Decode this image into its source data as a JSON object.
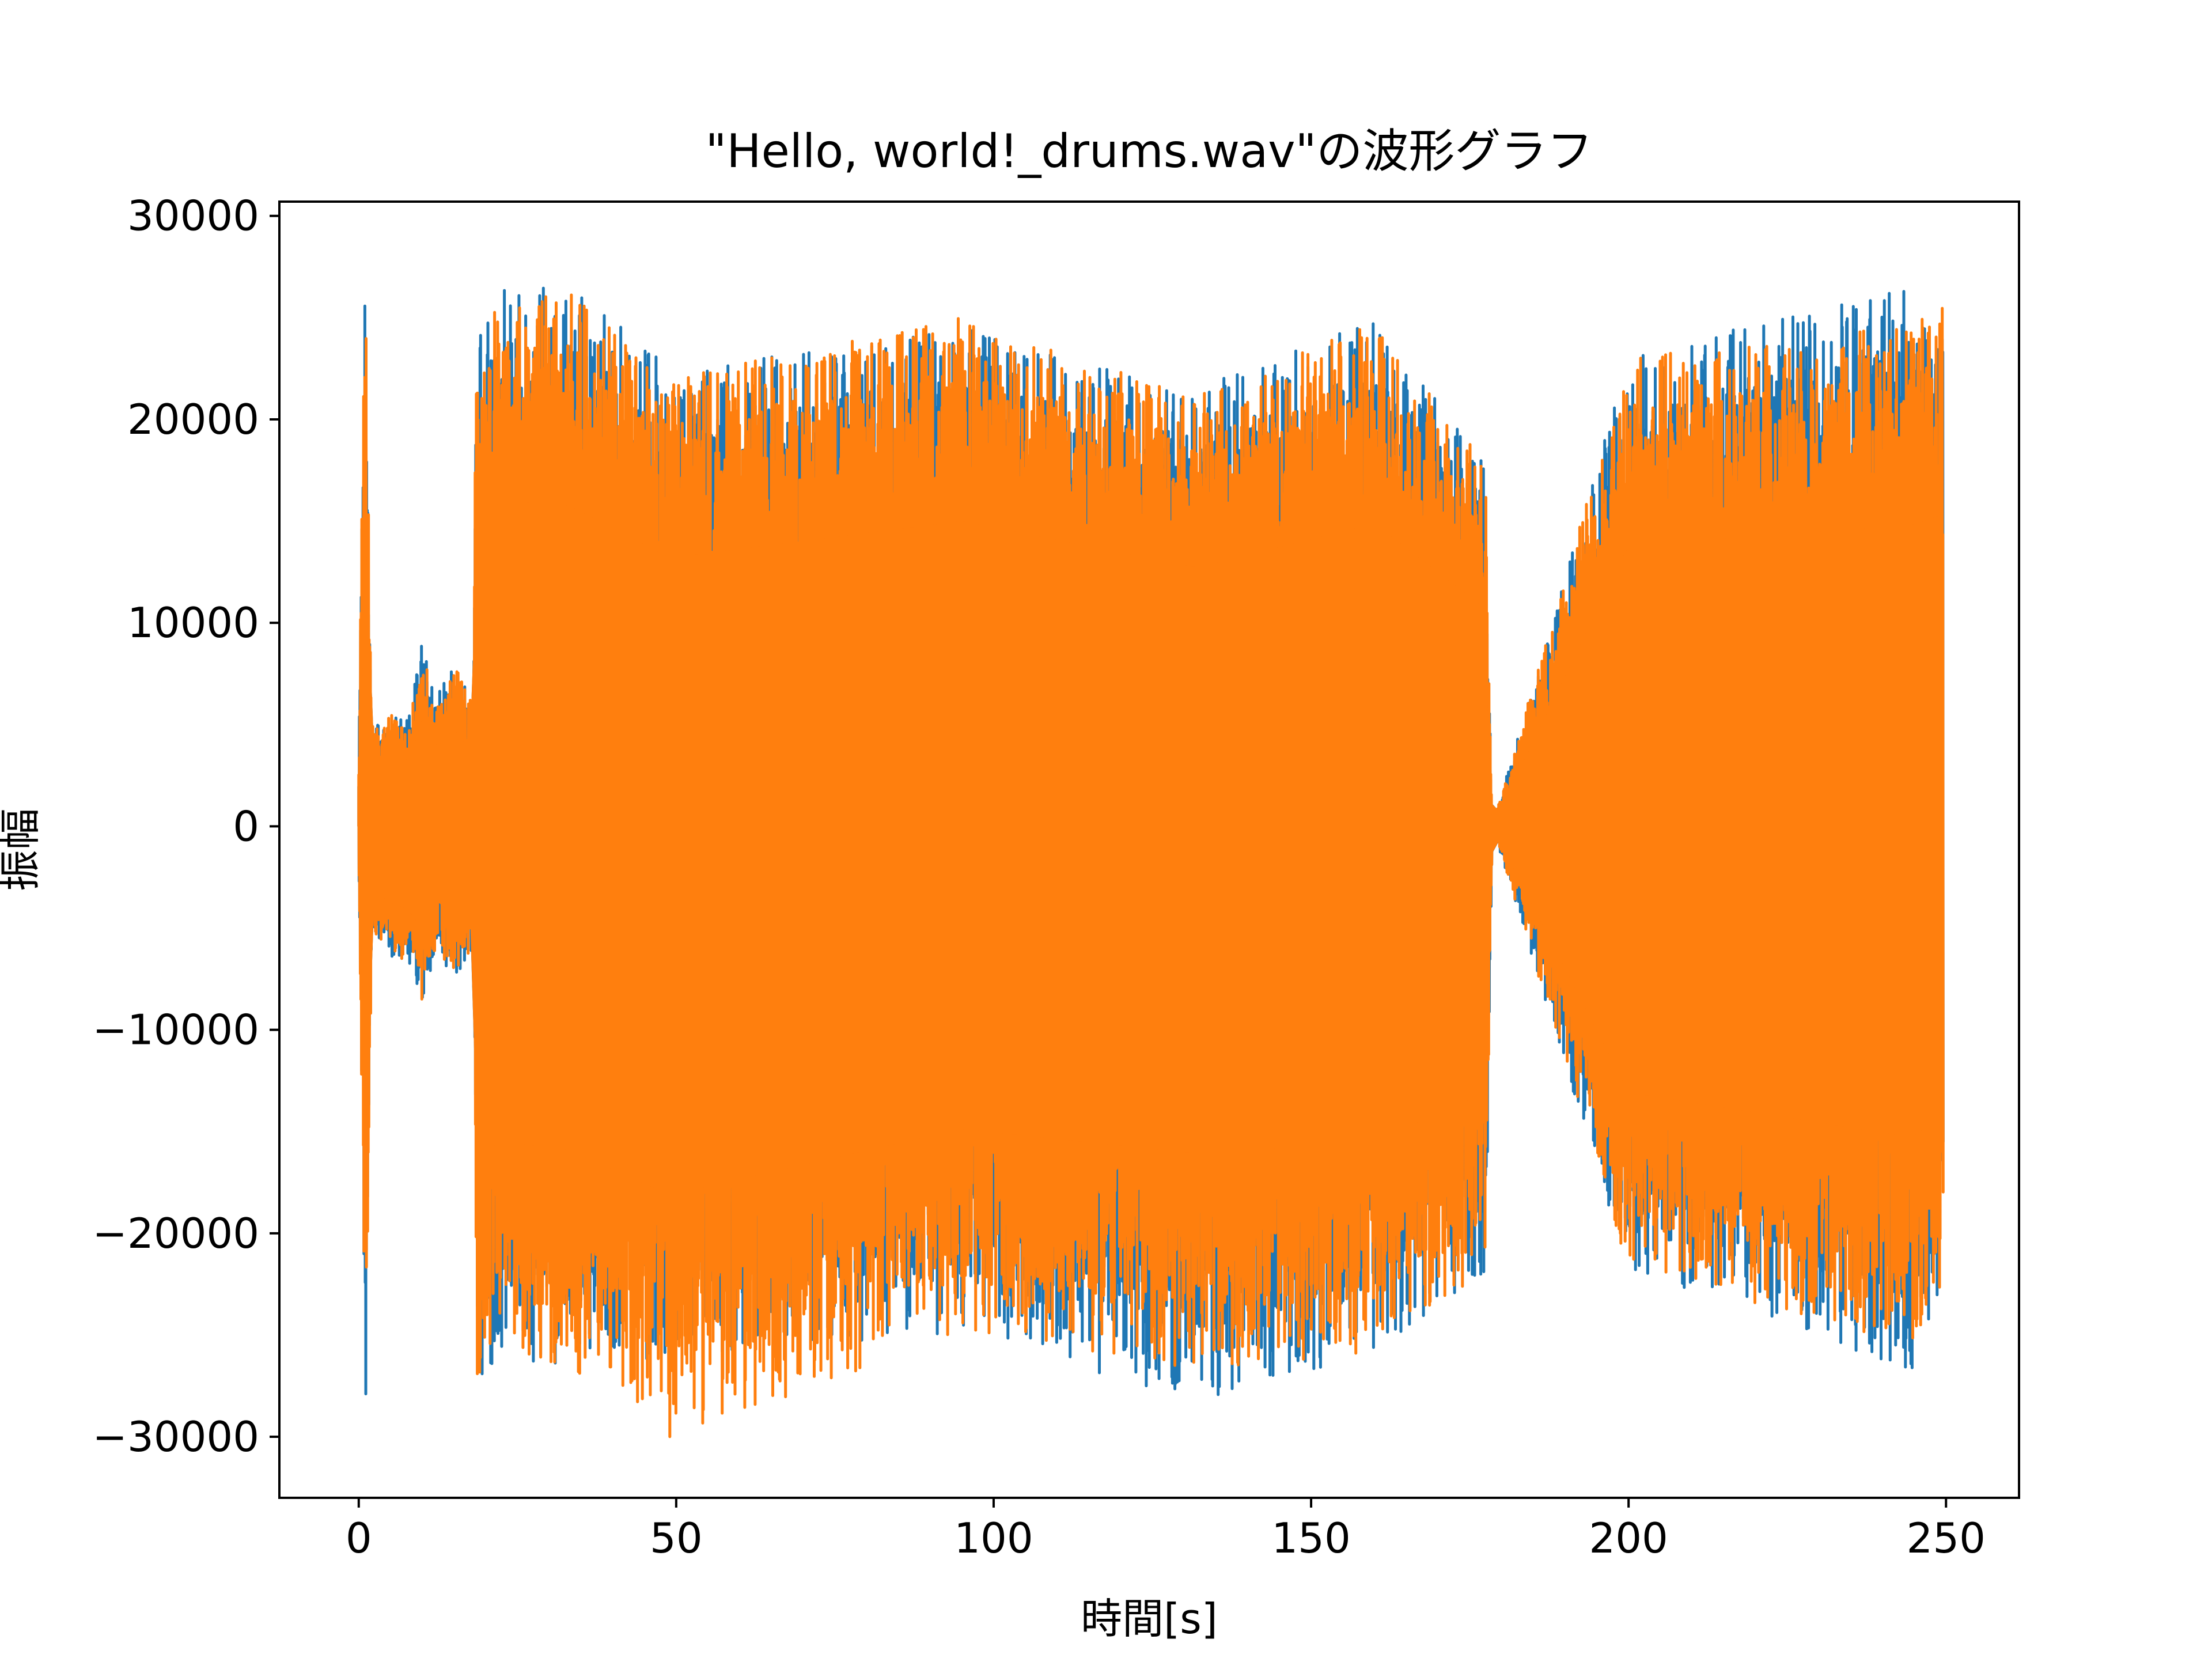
{
  "chart_data": {
    "type": "line",
    "title": "\"Hello, world!_drums.wav\"の波形グラフ",
    "xlabel": "時間[s]",
    "ylabel": "振幅",
    "xlim": [
      -12.5,
      261.5
    ],
    "ylim": [
      -33000,
      30700
    ],
    "x_ticks": [
      0,
      50,
      100,
      150,
      200,
      250
    ],
    "x_tick_labels": [
      "0",
      "50",
      "100",
      "150",
      "200",
      "250"
    ],
    "y_ticks": [
      30000,
      20000,
      10000,
      0,
      -10000,
      -20000,
      -30000
    ],
    "y_tick_labels": [
      "30000",
      "20000",
      "10000",
      "0",
      "−10000",
      "−20000",
      "−30000"
    ],
    "grid": false,
    "legend": "none",
    "duration_s": 249.5,
    "series": [
      {
        "color": "#1f77b4",
        "x": [
          0,
          1,
          2,
          5,
          8,
          10,
          12,
          15,
          18,
          18.5,
          22,
          33,
          50,
          95,
          132,
          160,
          177.5,
          178.5,
          200,
          245,
          249
        ],
        "envelope_max": [
          3500,
          27500,
          5000,
          5800,
          5500,
          9600,
          6500,
          8100,
          6000,
          23500,
          26800,
          26500,
          22500,
          24500,
          21500,
          25000,
          18000,
          0,
          23000,
          26800,
          25000
        ],
        "envelope_min": [
          -3500,
          -29800,
          -5000,
          -6500,
          -7000,
          -8800,
          -6200,
          -7500,
          -6200,
          -27500,
          -26000,
          -26700,
          -26000,
          -25000,
          -28200,
          -26000,
          -22000,
          0,
          -22000,
          -26800,
          -23800
        ]
      },
      {
        "color": "#ff7f0e",
        "x": [
          0,
          1,
          2,
          5,
          8,
          10,
          12,
          15,
          18,
          18.5,
          22,
          33,
          49,
          95,
          132,
          160,
          177.5,
          178.5,
          200,
          245,
          249
        ],
        "envelope_max": [
          3500,
          27700,
          5000,
          5600,
          5400,
          8800,
          6300,
          8000,
          5900,
          24000,
          26700,
          26300,
          22000,
          25000,
          21200,
          24800,
          17800,
          0,
          23000,
          24700,
          25500
        ],
        "envelope_min": [
          -3500,
          -29900,
          -5000,
          -6300,
          -6800,
          -8600,
          -6000,
          -7300,
          -6000,
          -27600,
          -25800,
          -26500,
          -30200,
          -24800,
          -26800,
          -25800,
          -21800,
          0,
          -21800,
          -25500,
          -23500
        ]
      }
    ]
  }
}
